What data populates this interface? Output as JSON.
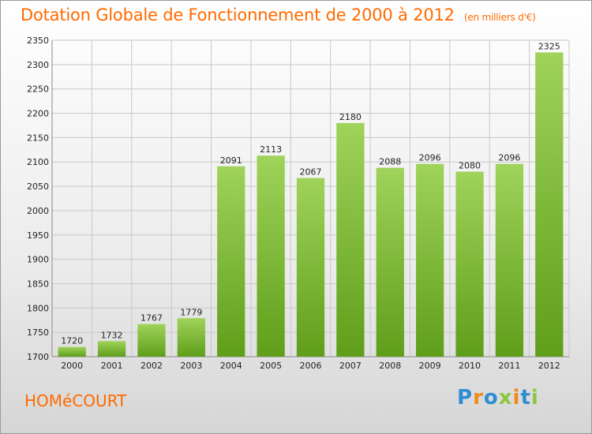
{
  "header": {
    "title": "Dotation Globale de Fonctionnement de 2000 à 2012",
    "unit": "(en milliers d'€)"
  },
  "footer": {
    "city": "HOMéCOURT",
    "logo_text": "Proxiti"
  },
  "colors": {
    "accent": "#ff6a00",
    "bar_light": "#9fd35a",
    "bar_dark": "#5f9e1a",
    "logo": [
      "#2d8fd1",
      "#f08a1c",
      "#2d8fd1",
      "#8cc63f",
      "#f08a1c",
      "#2d8fd1",
      "#8cc63f"
    ]
  },
  "chart_data": {
    "type": "bar",
    "categories": [
      "2000",
      "2001",
      "2002",
      "2003",
      "2004",
      "2005",
      "2006",
      "2007",
      "2008",
      "2009",
      "2010",
      "2011",
      "2012"
    ],
    "values": [
      1720,
      1732,
      1767,
      1779,
      2091,
      2113,
      2067,
      2180,
      2088,
      2096,
      2080,
      2096,
      2325
    ],
    "ylim": [
      1700,
      2350
    ],
    "yticks": [
      1700,
      1750,
      1800,
      1850,
      1900,
      1950,
      2000,
      2050,
      2100,
      2150,
      2200,
      2250,
      2300,
      2350
    ],
    "grid": true,
    "title": "Dotation Globale de Fonctionnement de 2000 à 2012",
    "xlabel": "",
    "ylabel": ""
  }
}
